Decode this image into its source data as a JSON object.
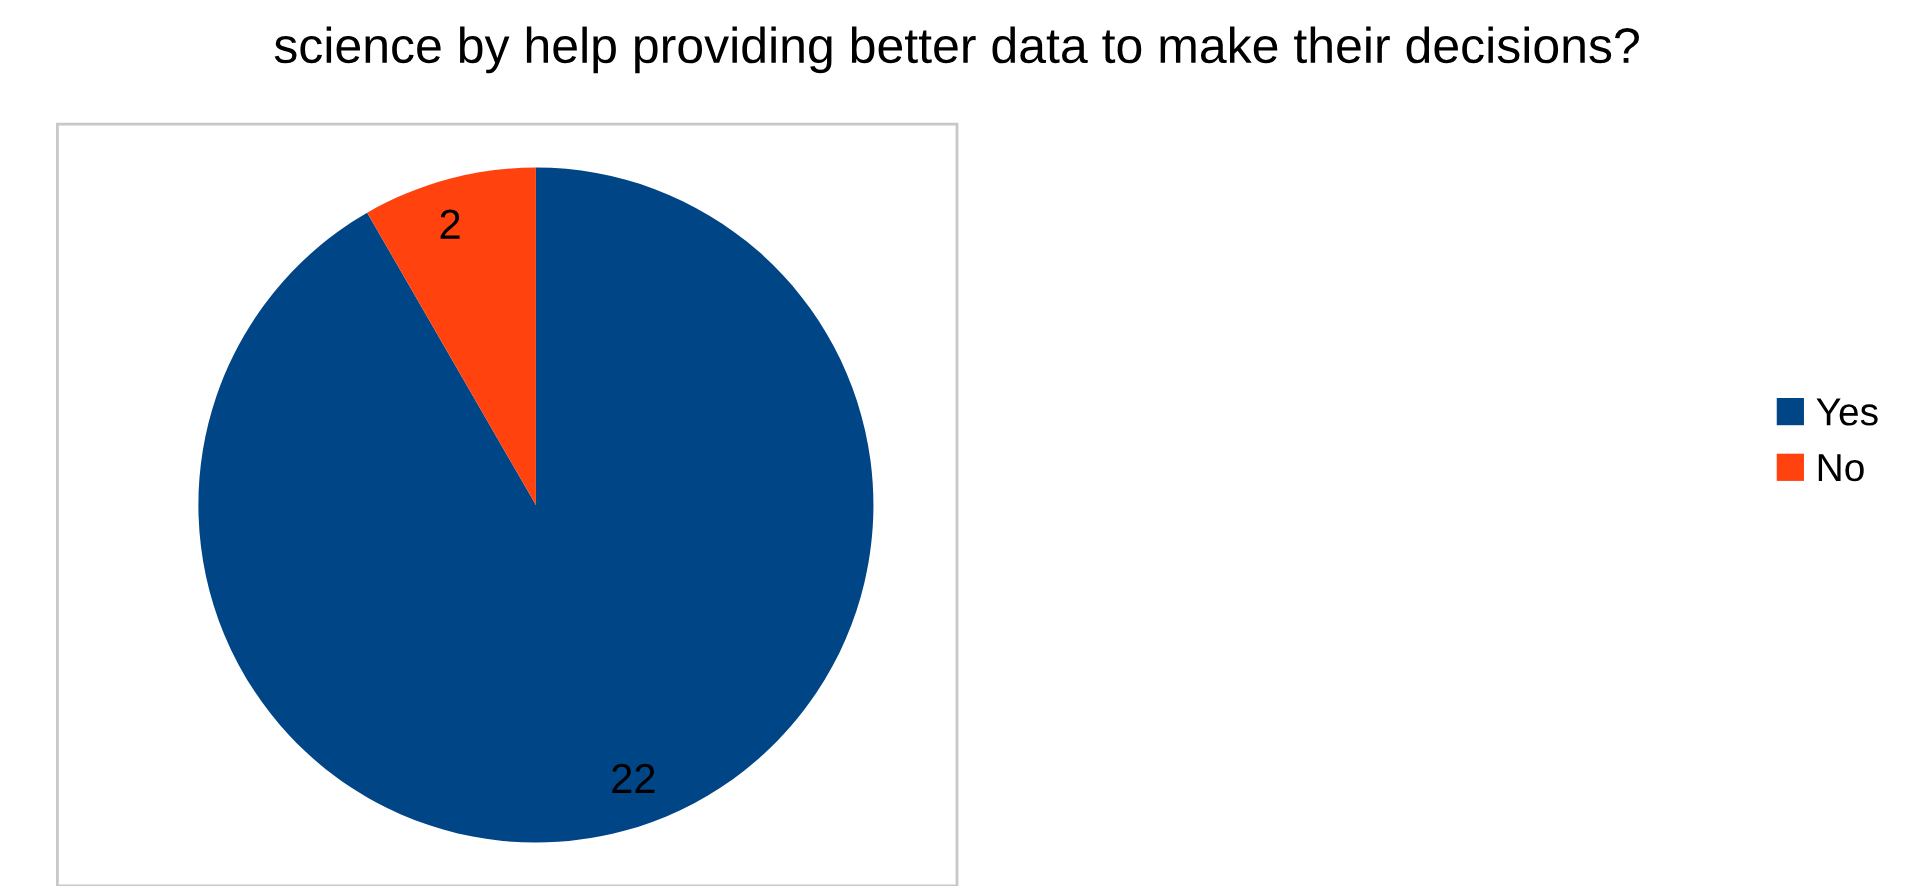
{
  "chart_data": {
    "type": "pie",
    "title": "science by help providing better data to make their decisions?",
    "categories": [
      "Yes",
      "No"
    ],
    "values": [
      22,
      2
    ],
    "colors": [
      "#004586",
      "#ff420e"
    ],
    "data_labels": true,
    "legend": "right"
  }
}
